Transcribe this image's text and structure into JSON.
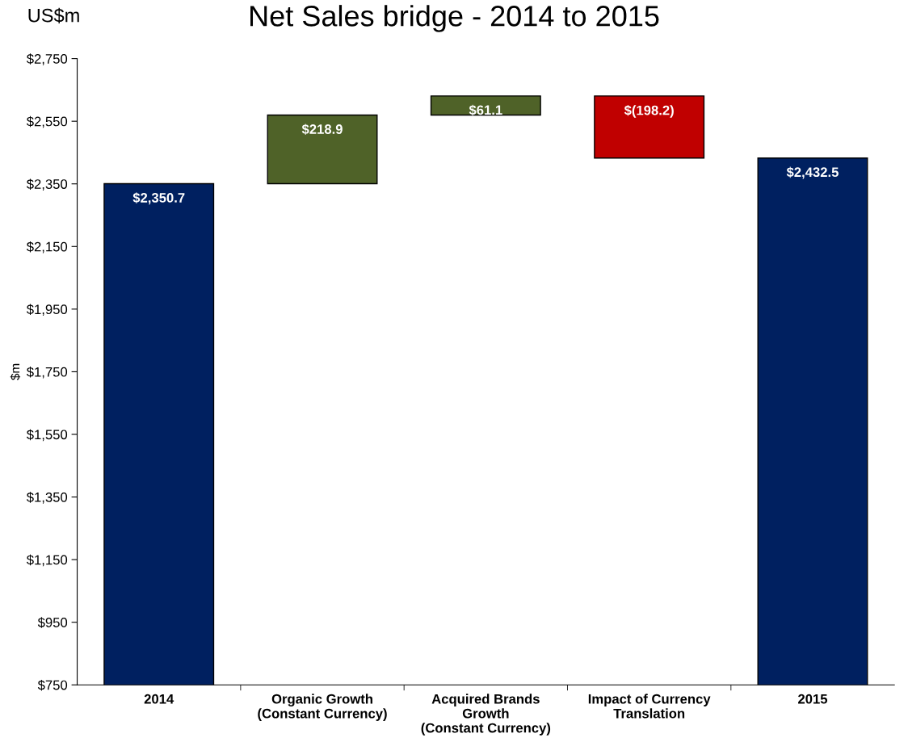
{
  "chart_data": {
    "type": "bar",
    "title": "Net Sales bridge - 2014 to 2015",
    "ylabel": "$m",
    "annotations": [
      "US$m"
    ],
    "categories": [
      "2014",
      "Organic Growth\n(Constant Currency)",
      "Acquired Brands\nGrowth\n(Constant Currency)",
      "Impact of Currency\nTranslation",
      "2015"
    ],
    "values": [
      2350.7,
      218.9,
      61.1,
      -198.2,
      2432.5
    ],
    "base": [
      null,
      2350.7,
      2569.6,
      2630.7,
      null
    ],
    "colors": [
      "#002060",
      "#4f6228",
      "#4f6228",
      "#c00000",
      "#002060"
    ],
    "value_labels": [
      "$2,350.7",
      "$218.9",
      "$61.1",
      "$(198.2)",
      "$2,432.5"
    ],
    "ylim": [
      750,
      2750
    ],
    "yticks": [
      {
        "value": 750,
        "label": "$750"
      },
      {
        "value": 950,
        "label": "$950"
      },
      {
        "value": 1150,
        "label": "$1,150"
      },
      {
        "value": 1350,
        "label": "$1,350"
      },
      {
        "value": 1550,
        "label": "$1,550"
      },
      {
        "value": 1750,
        "label": "$1,750"
      },
      {
        "value": 1950,
        "label": "$1,950"
      },
      {
        "value": 2150,
        "label": "$2,150"
      },
      {
        "value": 2350,
        "label": "$2,350"
      },
      {
        "value": 2550,
        "label": "$2,550"
      },
      {
        "value": 2750,
        "label": "$2,750"
      }
    ],
    "grid": false,
    "legend": false
  }
}
